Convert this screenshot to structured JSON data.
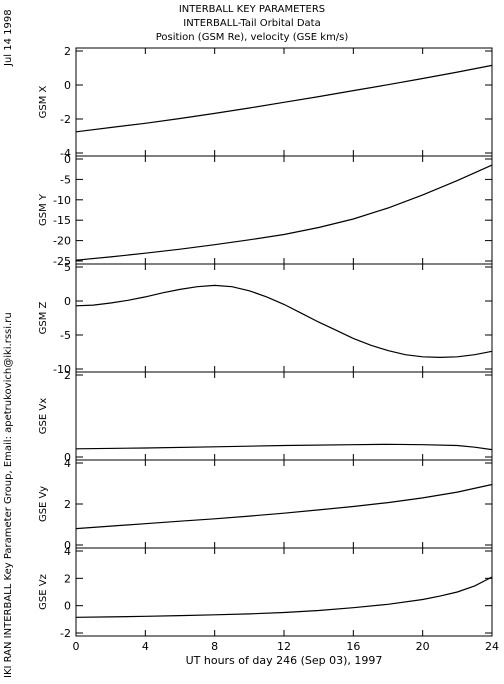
{
  "titles": [
    "INTERBALL KEY PARAMETERS",
    "INTERBALL-Tail Orbital Data",
    "Position (GSM Re), velocity (GSE km/s)"
  ],
  "date_label": "Jul 14 1998",
  "credit_label": "IKI RAN INTERBALL Key Parameter Group, Email: apetrukovich@iki.rssi.ru",
  "chart_data": {
    "type": "line",
    "xlabel": "UT hours of day 246 (Sep 03), 1997",
    "xlim": [
      0,
      24
    ],
    "xticks": [
      0,
      4,
      8,
      12,
      16,
      20,
      24
    ],
    "panels": [
      {
        "ylabel": "GSM X",
        "ylim": [
          -4,
          2
        ],
        "yticks": [
          -4,
          -2,
          0,
          2
        ],
        "series": [
          {
            "x": [
              0,
              2,
              4,
              6,
              8,
              10,
              12,
              14,
              16,
              18,
              20,
              22,
              24
            ],
            "y": [
              -2.75,
              -2.5,
              -2.25,
              -1.97,
              -1.67,
              -1.35,
              -1.02,
              -0.68,
              -0.33,
              0.02,
              0.38,
              0.76,
              1.15
            ]
          }
        ]
      },
      {
        "ylabel": "GSM Y",
        "ylim": [
          -25,
          0
        ],
        "yticks": [
          -25,
          -20,
          -15,
          -10,
          -5,
          0
        ],
        "series": [
          {
            "x": [
              0,
              2,
              4,
              6,
              8,
              10,
              12,
              14,
              16,
              18,
              20,
              22,
              24
            ],
            "y": [
              -24.8,
              -24.0,
              -23.1,
              -22.1,
              -21.0,
              -19.8,
              -18.5,
              -16.8,
              -14.7,
              -12.0,
              -8.8,
              -5.3,
              -1.5
            ]
          }
        ]
      },
      {
        "ylabel": "GSM Z",
        "ylim": [
          -10,
          5
        ],
        "yticks": [
          -10,
          -5,
          0,
          5
        ],
        "series": [
          {
            "x": [
              0,
              1,
              2,
              3,
              4,
              5,
              6,
              7,
              8,
              9,
              10,
              11,
              12,
              13,
              14,
              15,
              16,
              17,
              18,
              19,
              20,
              21,
              22,
              23,
              24
            ],
            "y": [
              -0.7,
              -0.6,
              -0.3,
              0.1,
              0.6,
              1.2,
              1.7,
              2.1,
              2.3,
              2.1,
              1.5,
              0.6,
              -0.5,
              -1.8,
              -3.1,
              -4.3,
              -5.5,
              -6.5,
              -7.3,
              -7.9,
              -8.2,
              -8.3,
              -8.2,
              -7.9,
              -7.4
            ]
          }
        ]
      },
      {
        "ylabel": "GSE Vx",
        "ylim": [
          0,
          2
        ],
        "yticks": [
          0,
          2
        ],
        "series": [
          {
            "x": [
              0,
              4,
              8,
              12,
              16,
              18,
              20,
              22,
              23,
              24
            ],
            "y": [
              0.2,
              0.22,
              0.25,
              0.28,
              0.3,
              0.31,
              0.3,
              0.28,
              0.24,
              0.18
            ]
          }
        ]
      },
      {
        "ylabel": "GSE Vy",
        "ylim": [
          0,
          4
        ],
        "yticks": [
          0,
          2,
          4
        ],
        "series": [
          {
            "x": [
              0,
              2,
              4,
              6,
              8,
              10,
              12,
              14,
              16,
              18,
              20,
              22,
              24
            ],
            "y": [
              0.8,
              0.92,
              1.04,
              1.16,
              1.28,
              1.41,
              1.55,
              1.71,
              1.88,
              2.07,
              2.3,
              2.58,
              2.95
            ]
          }
        ]
      },
      {
        "ylabel": "GSE Vz",
        "ylim": [
          -2,
          4
        ],
        "yticks": [
          -2,
          0,
          2,
          4
        ],
        "series": [
          {
            "x": [
              0,
              2,
              4,
              6,
              8,
              10,
              12,
              14,
              16,
              18,
              20,
              21,
              22,
              23,
              24
            ],
            "y": [
              -0.85,
              -0.82,
              -0.78,
              -0.73,
              -0.67,
              -0.6,
              -0.5,
              -0.35,
              -0.15,
              0.1,
              0.45,
              0.7,
              1.0,
              1.45,
              2.1
            ]
          }
        ]
      }
    ]
  }
}
